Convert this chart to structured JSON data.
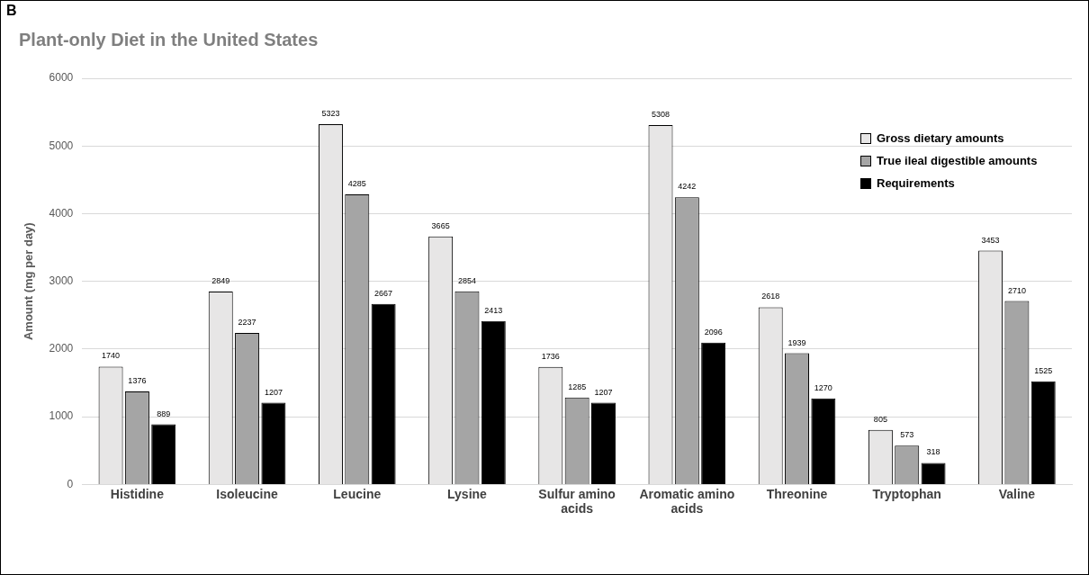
{
  "chart_data": {
    "type": "bar",
    "title": "Plant-only Diet in the United States",
    "ylabel": "Amount (mg per day)",
    "annotations": [
      "B"
    ],
    "categories": [
      "Histidine",
      "Isoleucine",
      "Leucine",
      "Lysine",
      "Sulfur amino acids",
      "Aromatic amino acids",
      "Threonine",
      "Tryptophan",
      "Valine"
    ],
    "series": [
      {
        "name": "Gross dietary amounts",
        "color": "#e7e6e6",
        "values": [
          1740,
          2849,
          5323,
          3665,
          1736,
          5308,
          2618,
          805,
          3453
        ]
      },
      {
        "name": "True ileal digestible amounts",
        "color": "#a5a5a5",
        "values": [
          1376,
          2237,
          4285,
          2854,
          1285,
          4242,
          1939,
          573,
          2710
        ]
      },
      {
        "name": "Requirements",
        "color": "#000000",
        "values": [
          889,
          1207,
          2667,
          2413,
          1207,
          2096,
          1270,
          318,
          1525
        ]
      }
    ],
    "ylim": [
      0,
      6000
    ],
    "yticks": [
      0,
      1000,
      2000,
      3000,
      4000,
      5000,
      6000
    ],
    "grid": "y",
    "legend": "top right",
    "data_labels": true
  }
}
